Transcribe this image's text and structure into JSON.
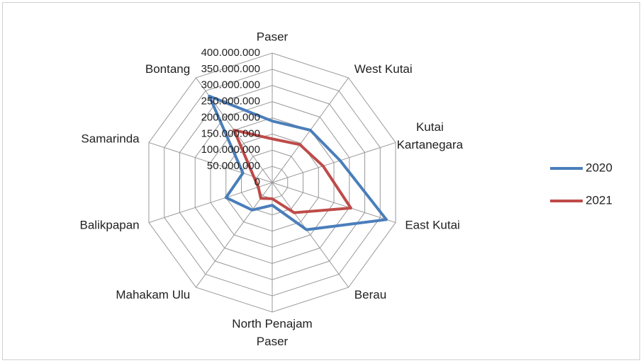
{
  "chart_data": {
    "type": "radar",
    "categories": [
      "Paser",
      "West Kutai",
      "Kutai Kartanegara",
      "East Kutai",
      "Berau",
      "North Penajam Paser",
      "Mahakam Ulu",
      "Balikpapan",
      "Samarinda",
      "Bontang"
    ],
    "series": [
      {
        "name": "2020",
        "color": "#4a7ebb",
        "values": [
          190000000,
          200000000,
          220000000,
          370000000,
          180000000,
          70000000,
          105000000,
          150000000,
          95000000,
          330000000
        ]
      },
      {
        "name": "2021",
        "color": "#be4b48",
        "values": [
          135000000,
          145000000,
          165000000,
          255000000,
          115000000,
          50000000,
          60000000,
          45000000,
          60000000,
          200000000
        ]
      }
    ],
    "ylim": [
      0,
      400000000
    ],
    "yticks": [
      0,
      {
        "value": 50000000,
        "label": "50.000.000"
      },
      {
        "value": 100000000,
        "label": "100.000.000"
      },
      {
        "value": 150000000,
        "label": "150.000.000"
      },
      {
        "value": 200000000,
        "label": "200.000.000"
      },
      {
        "value": 250000000,
        "label": "250.000.000"
      },
      {
        "value": 300000000,
        "label": "300.000.000"
      },
      {
        "value": 350000000,
        "label": "350.000.000"
      },
      {
        "value": 400000000,
        "label": "400.000.000"
      }
    ],
    "grid": true,
    "legend": "right"
  }
}
